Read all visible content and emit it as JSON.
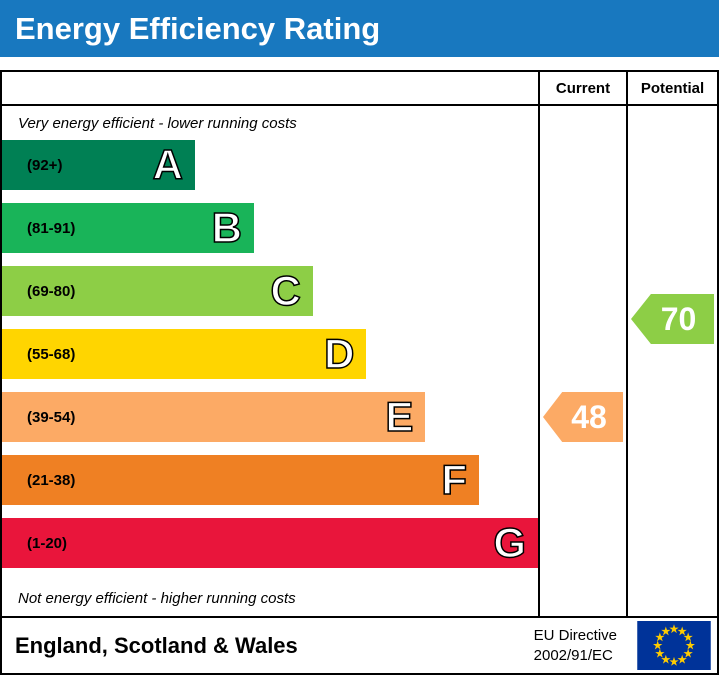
{
  "title": "Energy Efficiency Rating",
  "table": {
    "current_header": "Current",
    "potential_header": "Potential"
  },
  "notes": {
    "top": "Very energy efficient - lower running costs",
    "bottom": "Not energy efficient - higher running costs"
  },
  "chart_data": {
    "type": "bar",
    "subtype": "epc-energy-efficiency-rating",
    "title": "Energy Efficiency Rating",
    "bands": [
      {
        "letter": "A",
        "range": "(92+)",
        "color": "#008054",
        "width_pct": 36
      },
      {
        "letter": "B",
        "range": "(81-91)",
        "color": "#19b459",
        "width_pct": 47
      },
      {
        "letter": "C",
        "range": "(69-80)",
        "color": "#8dce46",
        "width_pct": 58
      },
      {
        "letter": "D",
        "range": "(55-68)",
        "color": "#ffd500",
        "width_pct": 68
      },
      {
        "letter": "E",
        "range": "(39-54)",
        "color": "#fcaa65",
        "width_pct": 79
      },
      {
        "letter": "F",
        "range": "(21-38)",
        "color": "#ef8023",
        "width_pct": 89
      },
      {
        "letter": "G",
        "range": "(1-20)",
        "color": "#e9153b",
        "width_pct": 100
      }
    ],
    "current": {
      "value": 48,
      "band": "E",
      "color": "#fcaa65"
    },
    "potential": {
      "value": 70,
      "band": "C",
      "color": "#8dce46"
    },
    "legend_position": "none",
    "grid": false
  },
  "footer": {
    "region": "England, Scotland & Wales",
    "directive": [
      "EU Directive",
      "2002/91/EC"
    ]
  },
  "colors": {
    "header_bg": "#1878bf",
    "border": "#000000",
    "eu_flag_blue": "#003399",
    "eu_flag_star": "#ffcc00"
  }
}
